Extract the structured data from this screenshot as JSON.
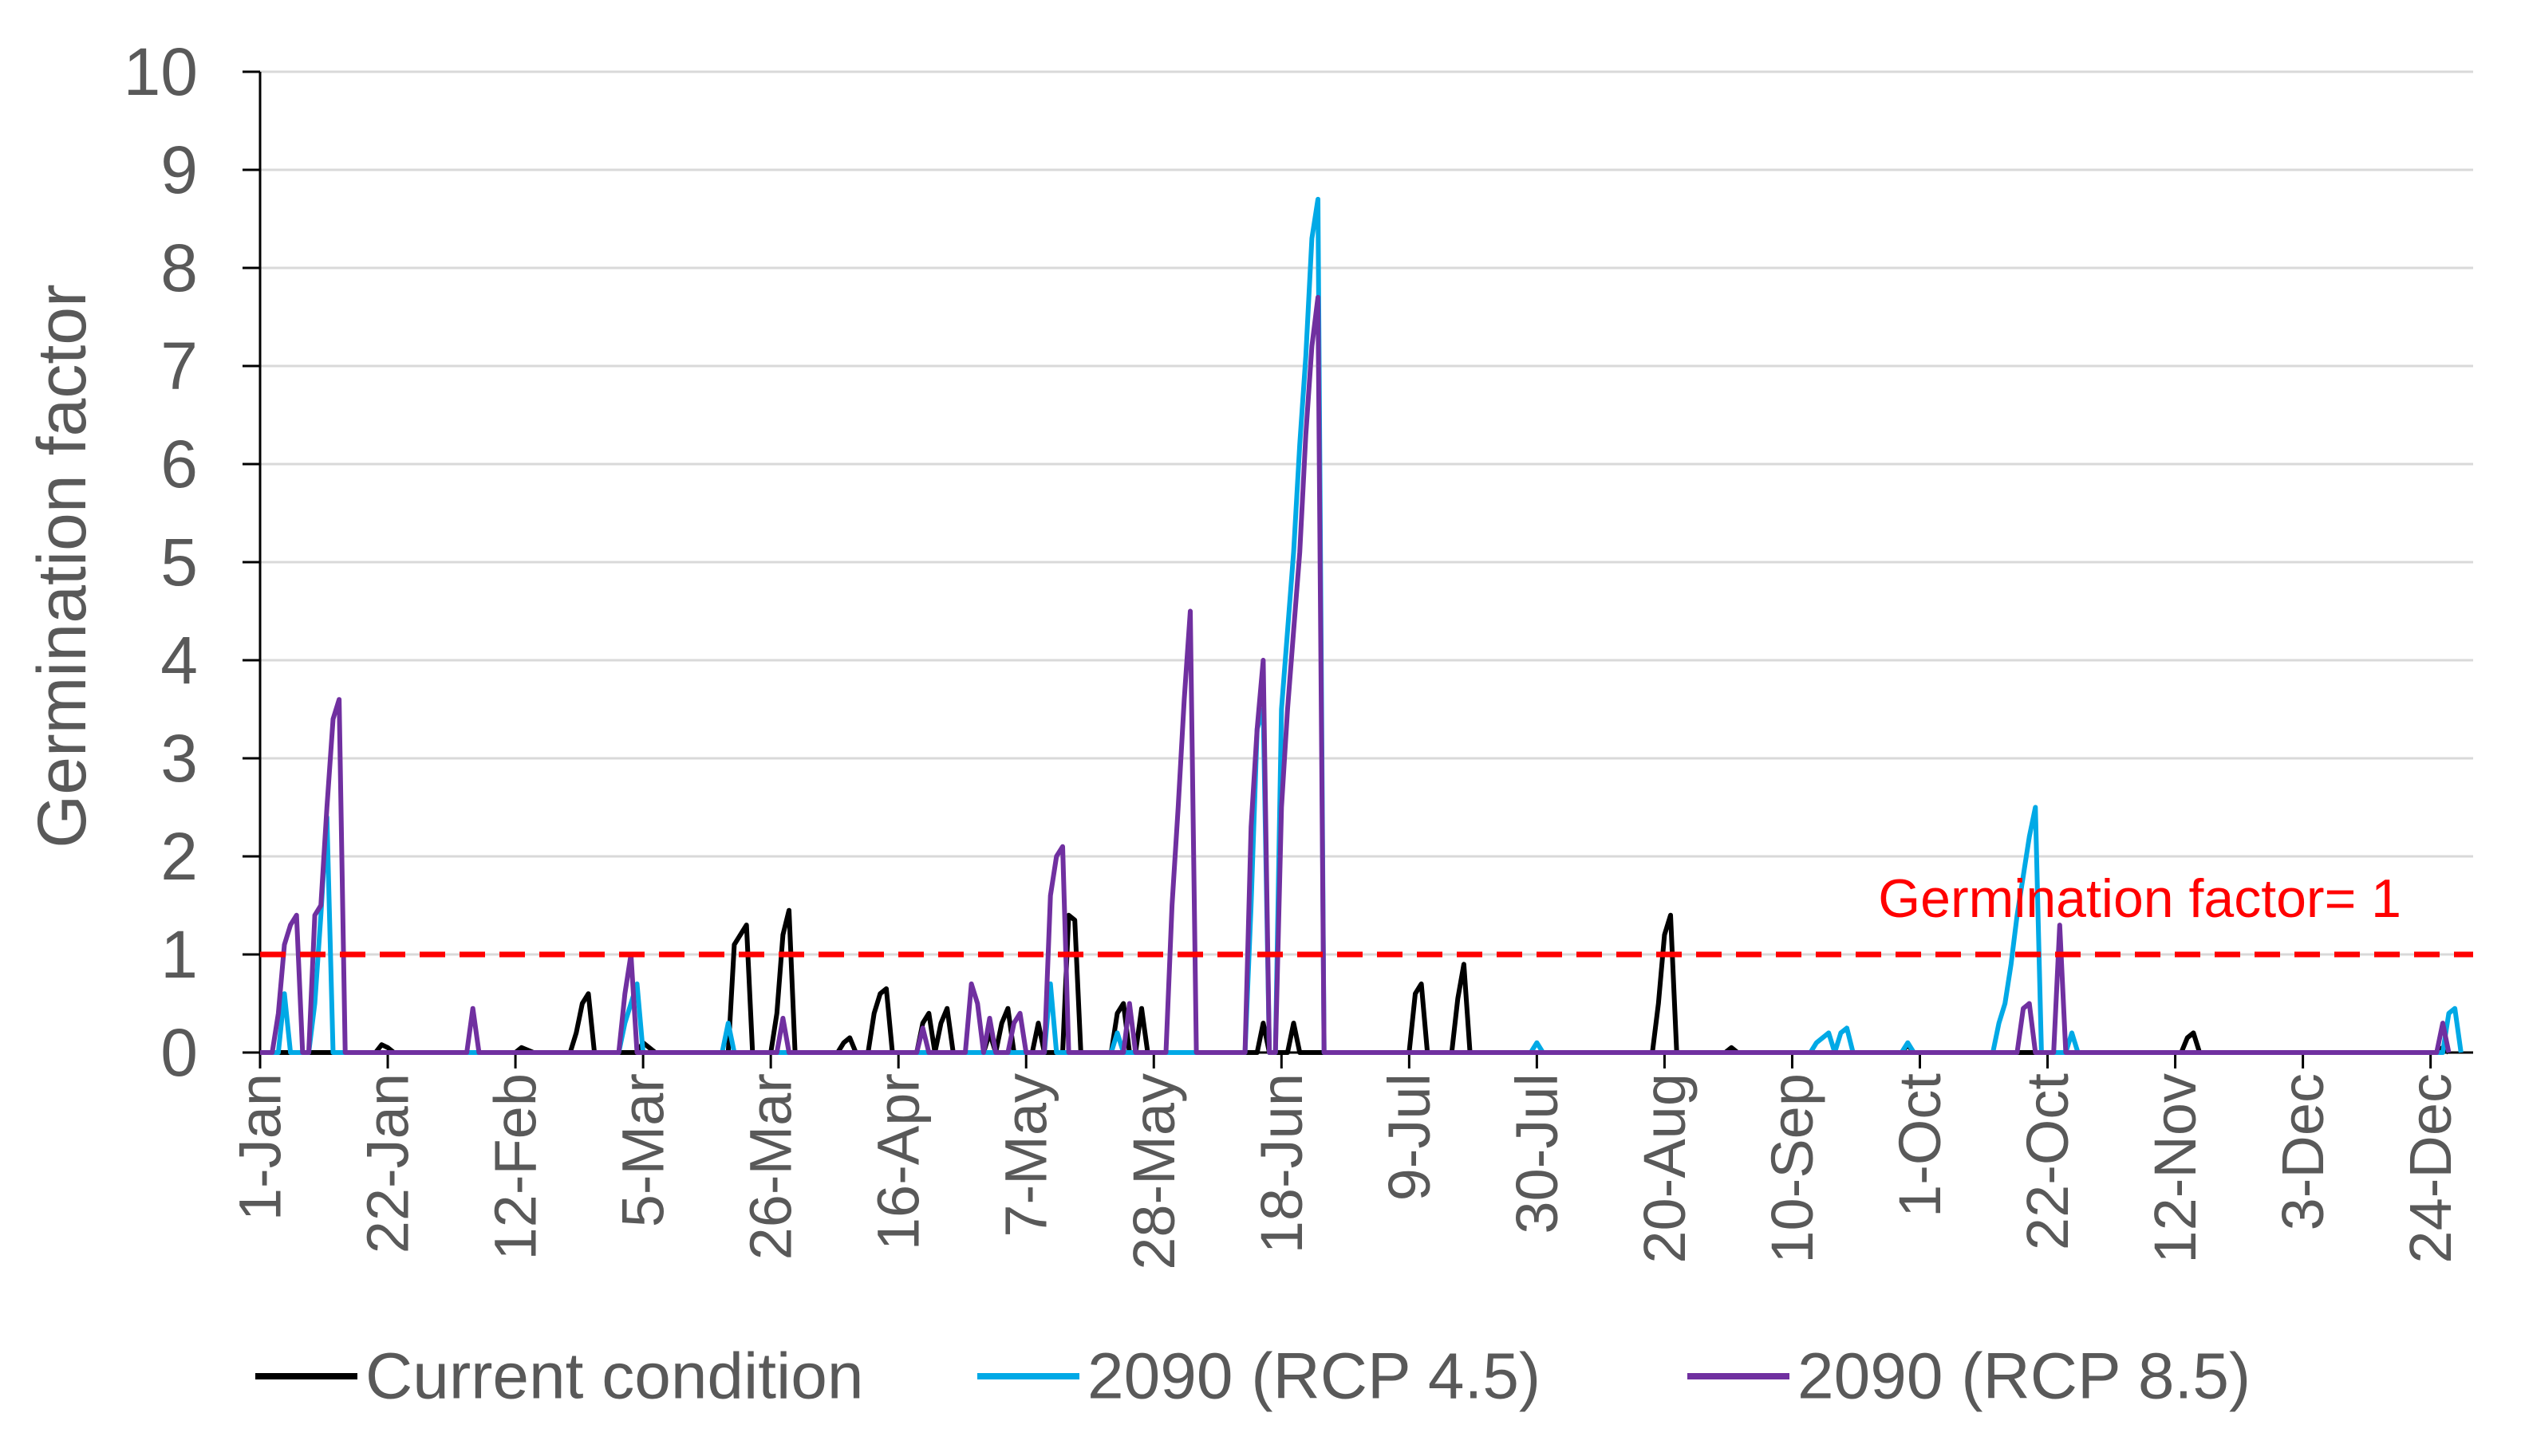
{
  "chart_data": {
    "type": "line",
    "title": "",
    "xlabel": "",
    "ylabel": "Germination factor",
    "ylim": [
      0,
      10
    ],
    "yticks": [
      "0",
      "1",
      "2",
      "3",
      "4",
      "5",
      "6",
      "7",
      "8",
      "9",
      "10"
    ],
    "xlim": [
      1,
      365
    ],
    "xticks": [
      {
        "day": 1,
        "label": "1-Jan"
      },
      {
        "day": 22,
        "label": "22-Jan"
      },
      {
        "day": 43,
        "label": "12-Feb"
      },
      {
        "day": 64,
        "label": "5-Mar"
      },
      {
        "day": 85,
        "label": "26-Mar"
      },
      {
        "day": 106,
        "label": "16-Apr"
      },
      {
        "day": 127,
        "label": "7-May"
      },
      {
        "day": 148,
        "label": "28-May"
      },
      {
        "day": 169,
        "label": "18-Jun"
      },
      {
        "day": 190,
        "label": "9-Jul"
      },
      {
        "day": 211,
        "label": "30-Jul"
      },
      {
        "day": 232,
        "label": "20-Aug"
      },
      {
        "day": 253,
        "label": "10-Sep"
      },
      {
        "day": 274,
        "label": "1-Oct"
      },
      {
        "day": 295,
        "label": "22-Oct"
      },
      {
        "day": 316,
        "label": "12-Nov"
      },
      {
        "day": 337,
        "label": "3-Dec"
      },
      {
        "day": 358,
        "label": "24-Dec"
      }
    ],
    "grid": true,
    "reference_line": {
      "value": 1,
      "label": "Germination factor= 1",
      "color": "#ff0000"
    },
    "legend_position": "bottom",
    "series": [
      {
        "name": "Current condition",
        "color": "#000000",
        "points": [
          [
            1,
            0
          ],
          [
            20,
            0
          ],
          [
            21,
            0.08
          ],
          [
            22,
            0.05
          ],
          [
            23,
            0
          ],
          [
            43,
            0
          ],
          [
            44,
            0.05
          ],
          [
            46,
            0
          ],
          [
            52,
            0
          ],
          [
            53,
            0.2
          ],
          [
            54,
            0.5
          ],
          [
            55,
            0.6
          ],
          [
            56,
            0
          ],
          [
            63,
            0
          ],
          [
            64,
            0.1
          ],
          [
            66,
            0
          ],
          [
            78,
            0
          ],
          [
            79,
            1.1
          ],
          [
            80,
            1.2
          ],
          [
            81,
            1.3
          ],
          [
            82,
            0
          ],
          [
            85,
            0
          ],
          [
            86,
            0.4
          ],
          [
            87,
            1.2
          ],
          [
            88,
            1.45
          ],
          [
            89,
            0
          ],
          [
            96,
            0
          ],
          [
            97,
            0.1
          ],
          [
            98,
            0.15
          ],
          [
            99,
            0
          ],
          [
            101,
            0
          ],
          [
            102,
            0.4
          ],
          [
            103,
            0.6
          ],
          [
            104,
            0.65
          ],
          [
            105,
            0
          ],
          [
            109,
            0
          ],
          [
            110,
            0.3
          ],
          [
            111,
            0.4
          ],
          [
            112,
            0
          ],
          [
            113,
            0.3
          ],
          [
            114,
            0.45
          ],
          [
            115,
            0
          ],
          [
            120,
            0
          ],
          [
            121,
            0.2
          ],
          [
            122,
            0
          ],
          [
            123,
            0.3
          ],
          [
            124,
            0.45
          ],
          [
            125,
            0
          ],
          [
            128,
            0
          ],
          [
            129,
            0.3
          ],
          [
            130,
            0
          ],
          [
            133,
            0
          ],
          [
            134,
            1.4
          ],
          [
            135,
            1.35
          ],
          [
            136,
            0
          ],
          [
            141,
            0
          ],
          [
            142,
            0.4
          ],
          [
            143,
            0.5
          ],
          [
            144,
            0
          ],
          [
            145,
            0
          ],
          [
            146,
            0.45
          ],
          [
            147,
            0
          ],
          [
            165,
            0
          ],
          [
            166,
            0.3
          ],
          [
            167,
            0
          ],
          [
            170,
            0
          ],
          [
            171,
            0.3
          ],
          [
            172,
            0
          ],
          [
            190,
            0
          ],
          [
            191,
            0.6
          ],
          [
            192,
            0.7
          ],
          [
            193,
            0
          ],
          [
            197,
            0
          ],
          [
            198,
            0.55
          ],
          [
            199,
            0.9
          ],
          [
            200,
            0
          ],
          [
            230,
            0
          ],
          [
            231,
            0.5
          ],
          [
            232,
            1.2
          ],
          [
            233,
            1.4
          ],
          [
            234,
            0
          ],
          [
            242,
            0
          ],
          [
            243,
            0.05
          ],
          [
            244,
            0
          ],
          [
            271,
            0
          ],
          [
            272,
            0.08
          ],
          [
            273,
            0
          ],
          [
            317,
            0
          ],
          [
            318,
            0.15
          ],
          [
            319,
            0.2
          ],
          [
            320,
            0
          ],
          [
            359,
            0
          ],
          [
            360,
            0.05
          ],
          [
            361,
            0
          ]
        ]
      },
      {
        "name": "2090 (RCP 4.5)",
        "color": "#00a9e6",
        "points": [
          [
            1,
            0
          ],
          [
            4,
            0
          ],
          [
            5,
            0.6
          ],
          [
            6,
            0
          ],
          [
            9,
            0
          ],
          [
            10,
            0.5
          ],
          [
            11,
            1.4
          ],
          [
            12,
            2.4
          ],
          [
            13,
            0
          ],
          [
            60,
            0
          ],
          [
            61,
            0.3
          ],
          [
            62,
            0.5
          ],
          [
            63,
            0.7
          ],
          [
            64,
            0
          ],
          [
            77,
            0
          ],
          [
            78,
            0.3
          ],
          [
            79,
            0
          ],
          [
            130,
            0
          ],
          [
            131,
            0.7
          ],
          [
            132,
            0
          ],
          [
            141,
            0
          ],
          [
            142,
            0.2
          ],
          [
            143,
            0
          ],
          [
            163,
            0
          ],
          [
            164,
            1.5
          ],
          [
            165,
            3.3
          ],
          [
            166,
            3.5
          ],
          [
            167,
            0
          ],
          [
            168,
            0
          ],
          [
            169,
            3.5
          ],
          [
            170,
            4.3
          ],
          [
            171,
            5.1
          ],
          [
            172,
            6.2
          ],
          [
            173,
            7.1
          ],
          [
            174,
            8.3
          ],
          [
            175,
            8.7
          ],
          [
            176,
            0
          ],
          [
            210,
            0
          ],
          [
            211,
            0.1
          ],
          [
            212,
            0
          ],
          [
            256,
            0
          ],
          [
            257,
            0.1
          ],
          [
            258,
            0.15
          ],
          [
            259,
            0.2
          ],
          [
            260,
            0
          ],
          [
            261,
            0.2
          ],
          [
            262,
            0.25
          ],
          [
            263,
            0
          ],
          [
            271,
            0
          ],
          [
            272,
            0.1
          ],
          [
            273,
            0
          ],
          [
            286,
            0
          ],
          [
            287,
            0.3
          ],
          [
            288,
            0.5
          ],
          [
            289,
            0.9
          ],
          [
            290,
            1.4
          ],
          [
            291,
            1.8
          ],
          [
            292,
            2.2
          ],
          [
            293,
            2.5
          ],
          [
            294,
            0
          ],
          [
            298,
            0
          ],
          [
            299,
            0.2
          ],
          [
            300,
            0
          ],
          [
            360,
            0
          ],
          [
            361,
            0.4
          ],
          [
            362,
            0.45
          ],
          [
            363,
            0
          ]
        ]
      },
      {
        "name": "2090 (RCP 8.5)",
        "color": "#7030a0",
        "points": [
          [
            1,
            0
          ],
          [
            3,
            0
          ],
          [
            4,
            0.4
          ],
          [
            5,
            1.1
          ],
          [
            6,
            1.3
          ],
          [
            7,
            1.4
          ],
          [
            8,
            0
          ],
          [
            9,
            0
          ],
          [
            10,
            1.4
          ],
          [
            11,
            1.5
          ],
          [
            12,
            2.5
          ],
          [
            13,
            3.4
          ],
          [
            14,
            3.6
          ],
          [
            15,
            0
          ],
          [
            35,
            0
          ],
          [
            36,
            0.45
          ],
          [
            37,
            0
          ],
          [
            60,
            0
          ],
          [
            61,
            0.6
          ],
          [
            62,
            1.0
          ],
          [
            63,
            0
          ],
          [
            86,
            0
          ],
          [
            87,
            0.35
          ],
          [
            88,
            0
          ],
          [
            109,
            0
          ],
          [
            110,
            0.25
          ],
          [
            111,
            0
          ],
          [
            117,
            0
          ],
          [
            118,
            0.7
          ],
          [
            119,
            0.5
          ],
          [
            120,
            0
          ],
          [
            121,
            0.35
          ],
          [
            122,
            0
          ],
          [
            124,
            0
          ],
          [
            125,
            0.3
          ],
          [
            126,
            0.4
          ],
          [
            127,
            0
          ],
          [
            130,
            0
          ],
          [
            131,
            1.6
          ],
          [
            132,
            2.0
          ],
          [
            133,
            2.1
          ],
          [
            134,
            0
          ],
          [
            143,
            0
          ],
          [
            144,
            0.5
          ],
          [
            145,
            0
          ],
          [
            150,
            0
          ],
          [
            151,
            1.5
          ],
          [
            152,
            2.5
          ],
          [
            153,
            3.6
          ],
          [
            154,
            4.5
          ],
          [
            155,
            0
          ],
          [
            163,
            0
          ],
          [
            164,
            2.3
          ],
          [
            165,
            3.3
          ],
          [
            166,
            4.0
          ],
          [
            167,
            0
          ],
          [
            168,
            0
          ],
          [
            169,
            2.5
          ],
          [
            170,
            3.5
          ],
          [
            171,
            4.3
          ],
          [
            172,
            5.1
          ],
          [
            173,
            6.3
          ],
          [
            174,
            7.2
          ],
          [
            175,
            7.7
          ],
          [
            176,
            0
          ],
          [
            290,
            0
          ],
          [
            291,
            0.45
          ],
          [
            292,
            0.5
          ],
          [
            293,
            0
          ],
          [
            296,
            0
          ],
          [
            297,
            1.3
          ],
          [
            298,
            0
          ],
          [
            359,
            0
          ],
          [
            360,
            0.3
          ],
          [
            361,
            0
          ]
        ]
      }
    ]
  }
}
